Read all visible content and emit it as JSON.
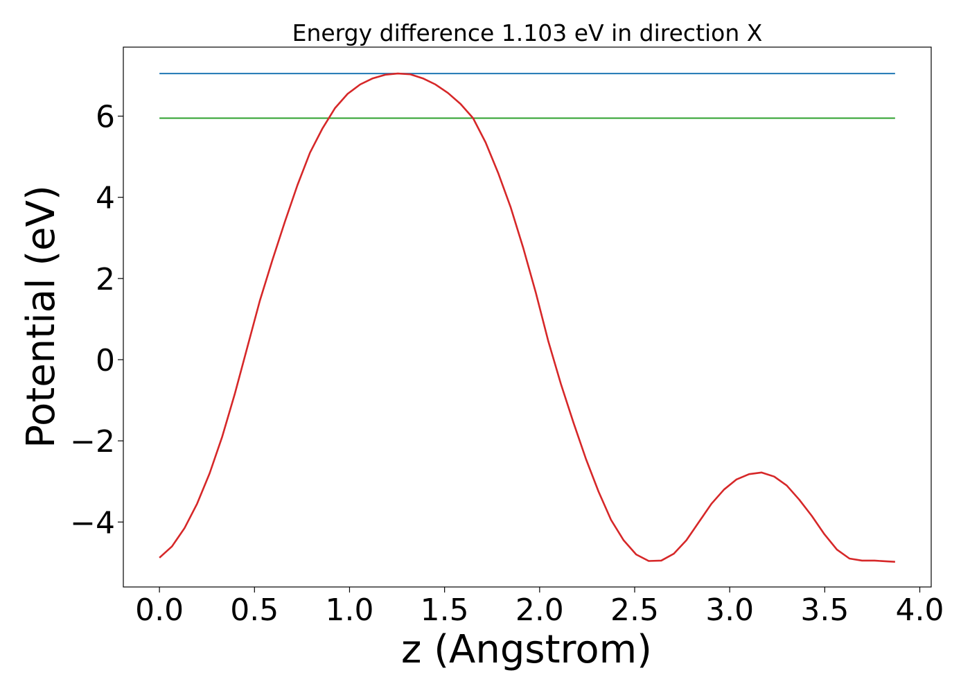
{
  "chart_data": {
    "type": "line",
    "title": "Energy difference 1.103 eV in direction X",
    "xlabel": "z (Angstrom)",
    "ylabel": "Potential (eV)",
    "xlim": [
      -0.19,
      4.06
    ],
    "ylim": [
      -5.6,
      7.7
    ],
    "xticks": [
      0.0,
      0.5,
      1.0,
      1.5,
      2.0,
      2.5,
      3.0,
      3.5,
      4.0
    ],
    "xtick_labels": [
      "0.0",
      "0.5",
      "1.0",
      "1.5",
      "2.0",
      "2.5",
      "3.0",
      "3.5",
      "4.0"
    ],
    "yticks": [
      -4,
      -2,
      0,
      2,
      4,
      6
    ],
    "ytick_labels": [
      "−4",
      "−2",
      "0",
      "2",
      "4",
      "6"
    ],
    "grid": false,
    "series": [
      {
        "color": "#d62728",
        "x": [
          0.0,
          0.066,
          0.132,
          0.198,
          0.264,
          0.33,
          0.396,
          0.462,
          0.528,
          0.594,
          0.66,
          0.726,
          0.792,
          0.858,
          0.924,
          0.99,
          1.056,
          1.122,
          1.188,
          1.254,
          1.32,
          1.386,
          1.452,
          1.518,
          1.584,
          1.65,
          1.716,
          1.782,
          1.848,
          1.914,
          1.98,
          2.046,
          2.112,
          2.178,
          2.244,
          2.31,
          2.376,
          2.442,
          2.508,
          2.574,
          2.64,
          2.706,
          2.772,
          2.838,
          2.904,
          2.97,
          3.036,
          3.102,
          3.168,
          3.234,
          3.3,
          3.366,
          3.432,
          3.498,
          3.564,
          3.63,
          3.696,
          3.762,
          3.828,
          3.87
        ],
        "y": [
          -4.88,
          -4.6,
          -4.15,
          -3.55,
          -2.8,
          -1.9,
          -0.85,
          0.3,
          1.45,
          2.45,
          3.4,
          4.3,
          5.1,
          5.7,
          6.2,
          6.55,
          6.78,
          6.93,
          7.02,
          7.05,
          7.03,
          6.93,
          6.78,
          6.57,
          6.3,
          5.95,
          5.35,
          4.6,
          3.75,
          2.75,
          1.65,
          0.45,
          -0.6,
          -1.55,
          -2.45,
          -3.25,
          -3.95,
          -4.45,
          -4.8,
          -4.96,
          -4.95,
          -4.78,
          -4.45,
          -4.0,
          -3.55,
          -3.2,
          -2.95,
          -2.82,
          -2.78,
          -2.88,
          -3.1,
          -3.45,
          -3.85,
          -4.3,
          -4.68,
          -4.9,
          -4.95,
          -4.95,
          -4.97,
          -4.98
        ]
      },
      {
        "color": "#1f77b4",
        "x": [
          0.0,
          3.87
        ],
        "y": [
          7.05,
          7.05
        ]
      },
      {
        "color": "#2ca02c",
        "x": [
          0.0,
          3.87
        ],
        "y": [
          5.95,
          5.95
        ]
      }
    ]
  }
}
